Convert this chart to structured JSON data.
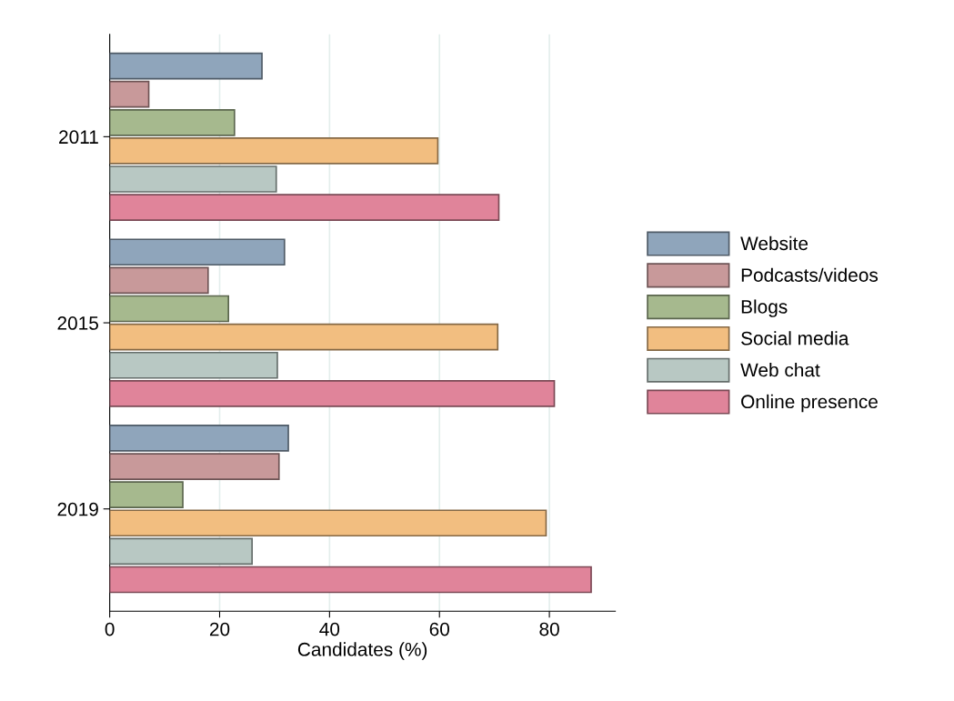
{
  "chart_data": {
    "type": "bar",
    "orientation": "horizontal",
    "xlabel": "Candidates (%)",
    "categories": [
      "2011",
      "2015",
      "2019"
    ],
    "series": [
      {
        "name": "Website",
        "color": "#8fa5bb",
        "values": [
          27.7,
          31.8,
          32.5
        ]
      },
      {
        "name": "Podcasts/videos",
        "color": "#c8999a",
        "values": [
          7.1,
          17.9,
          30.8
        ]
      },
      {
        "name": "Blogs",
        "color": "#a6b98e",
        "values": [
          22.7,
          21.6,
          13.3
        ]
      },
      {
        "name": "Social media",
        "color": "#f2be80",
        "values": [
          59.7,
          70.6,
          79.4
        ]
      },
      {
        "name": "Web chat",
        "color": "#b8c8c3",
        "values": [
          30.3,
          30.5,
          25.9
        ]
      },
      {
        "name": "Online presence",
        "color": "#e0849a",
        "values": [
          70.8,
          80.9,
          87.6
        ]
      }
    ],
    "xlim": [
      0,
      92
    ],
    "xticks": [
      0,
      20,
      40,
      60,
      80
    ],
    "grid": "x",
    "legend": "right"
  }
}
